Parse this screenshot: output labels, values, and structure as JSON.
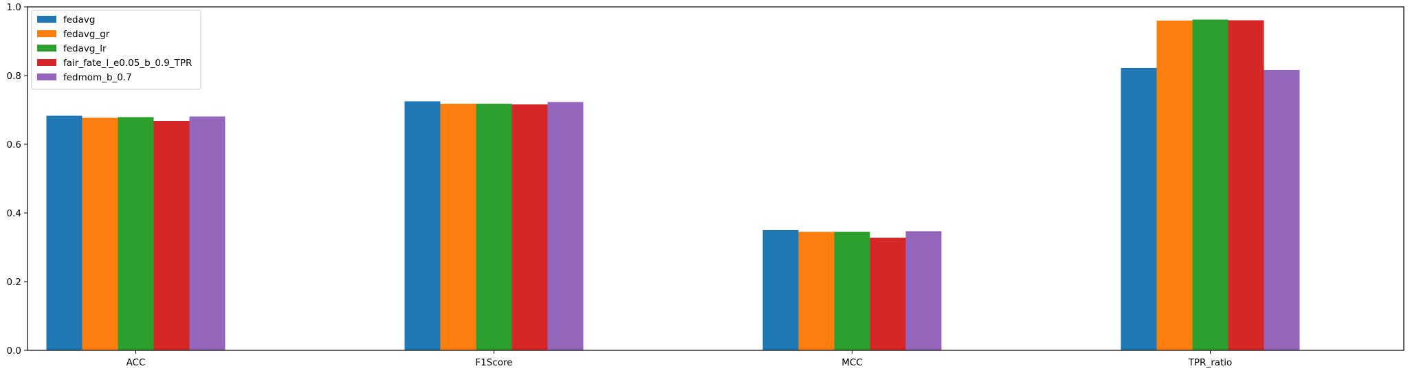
{
  "chart_data": {
    "type": "bar",
    "categories": [
      "ACC",
      "F1Score",
      "MCC",
      "TPR_ratio"
    ],
    "series": [
      {
        "name": "fedavg",
        "color": "#1f77b4",
        "values": [
          0.683,
          0.725,
          0.35,
          0.822
        ]
      },
      {
        "name": "fedavg_gr",
        "color": "#ff7f0e",
        "values": [
          0.677,
          0.718,
          0.345,
          0.96
        ]
      },
      {
        "name": "fedavg_lr",
        "color": "#2ca02c",
        "values": [
          0.679,
          0.718,
          0.345,
          0.963
        ]
      },
      {
        "name": "fair_fate_l_e0.05_b_0.9_TPR",
        "color": "#d62728",
        "values": [
          0.668,
          0.716,
          0.328,
          0.961
        ]
      },
      {
        "name": "fedmom_b_0.7",
        "color": "#9467bd",
        "values": [
          0.681,
          0.723,
          0.347,
          0.816
        ]
      }
    ],
    "ylim": [
      0,
      1.0
    ],
    "yticks": [
      "0.0",
      "0.2",
      "0.4",
      "0.6",
      "0.8",
      "1.0"
    ],
    "legend_position": "upper-left",
    "grid": false,
    "title": "",
    "xlabel": "",
    "ylabel": ""
  }
}
